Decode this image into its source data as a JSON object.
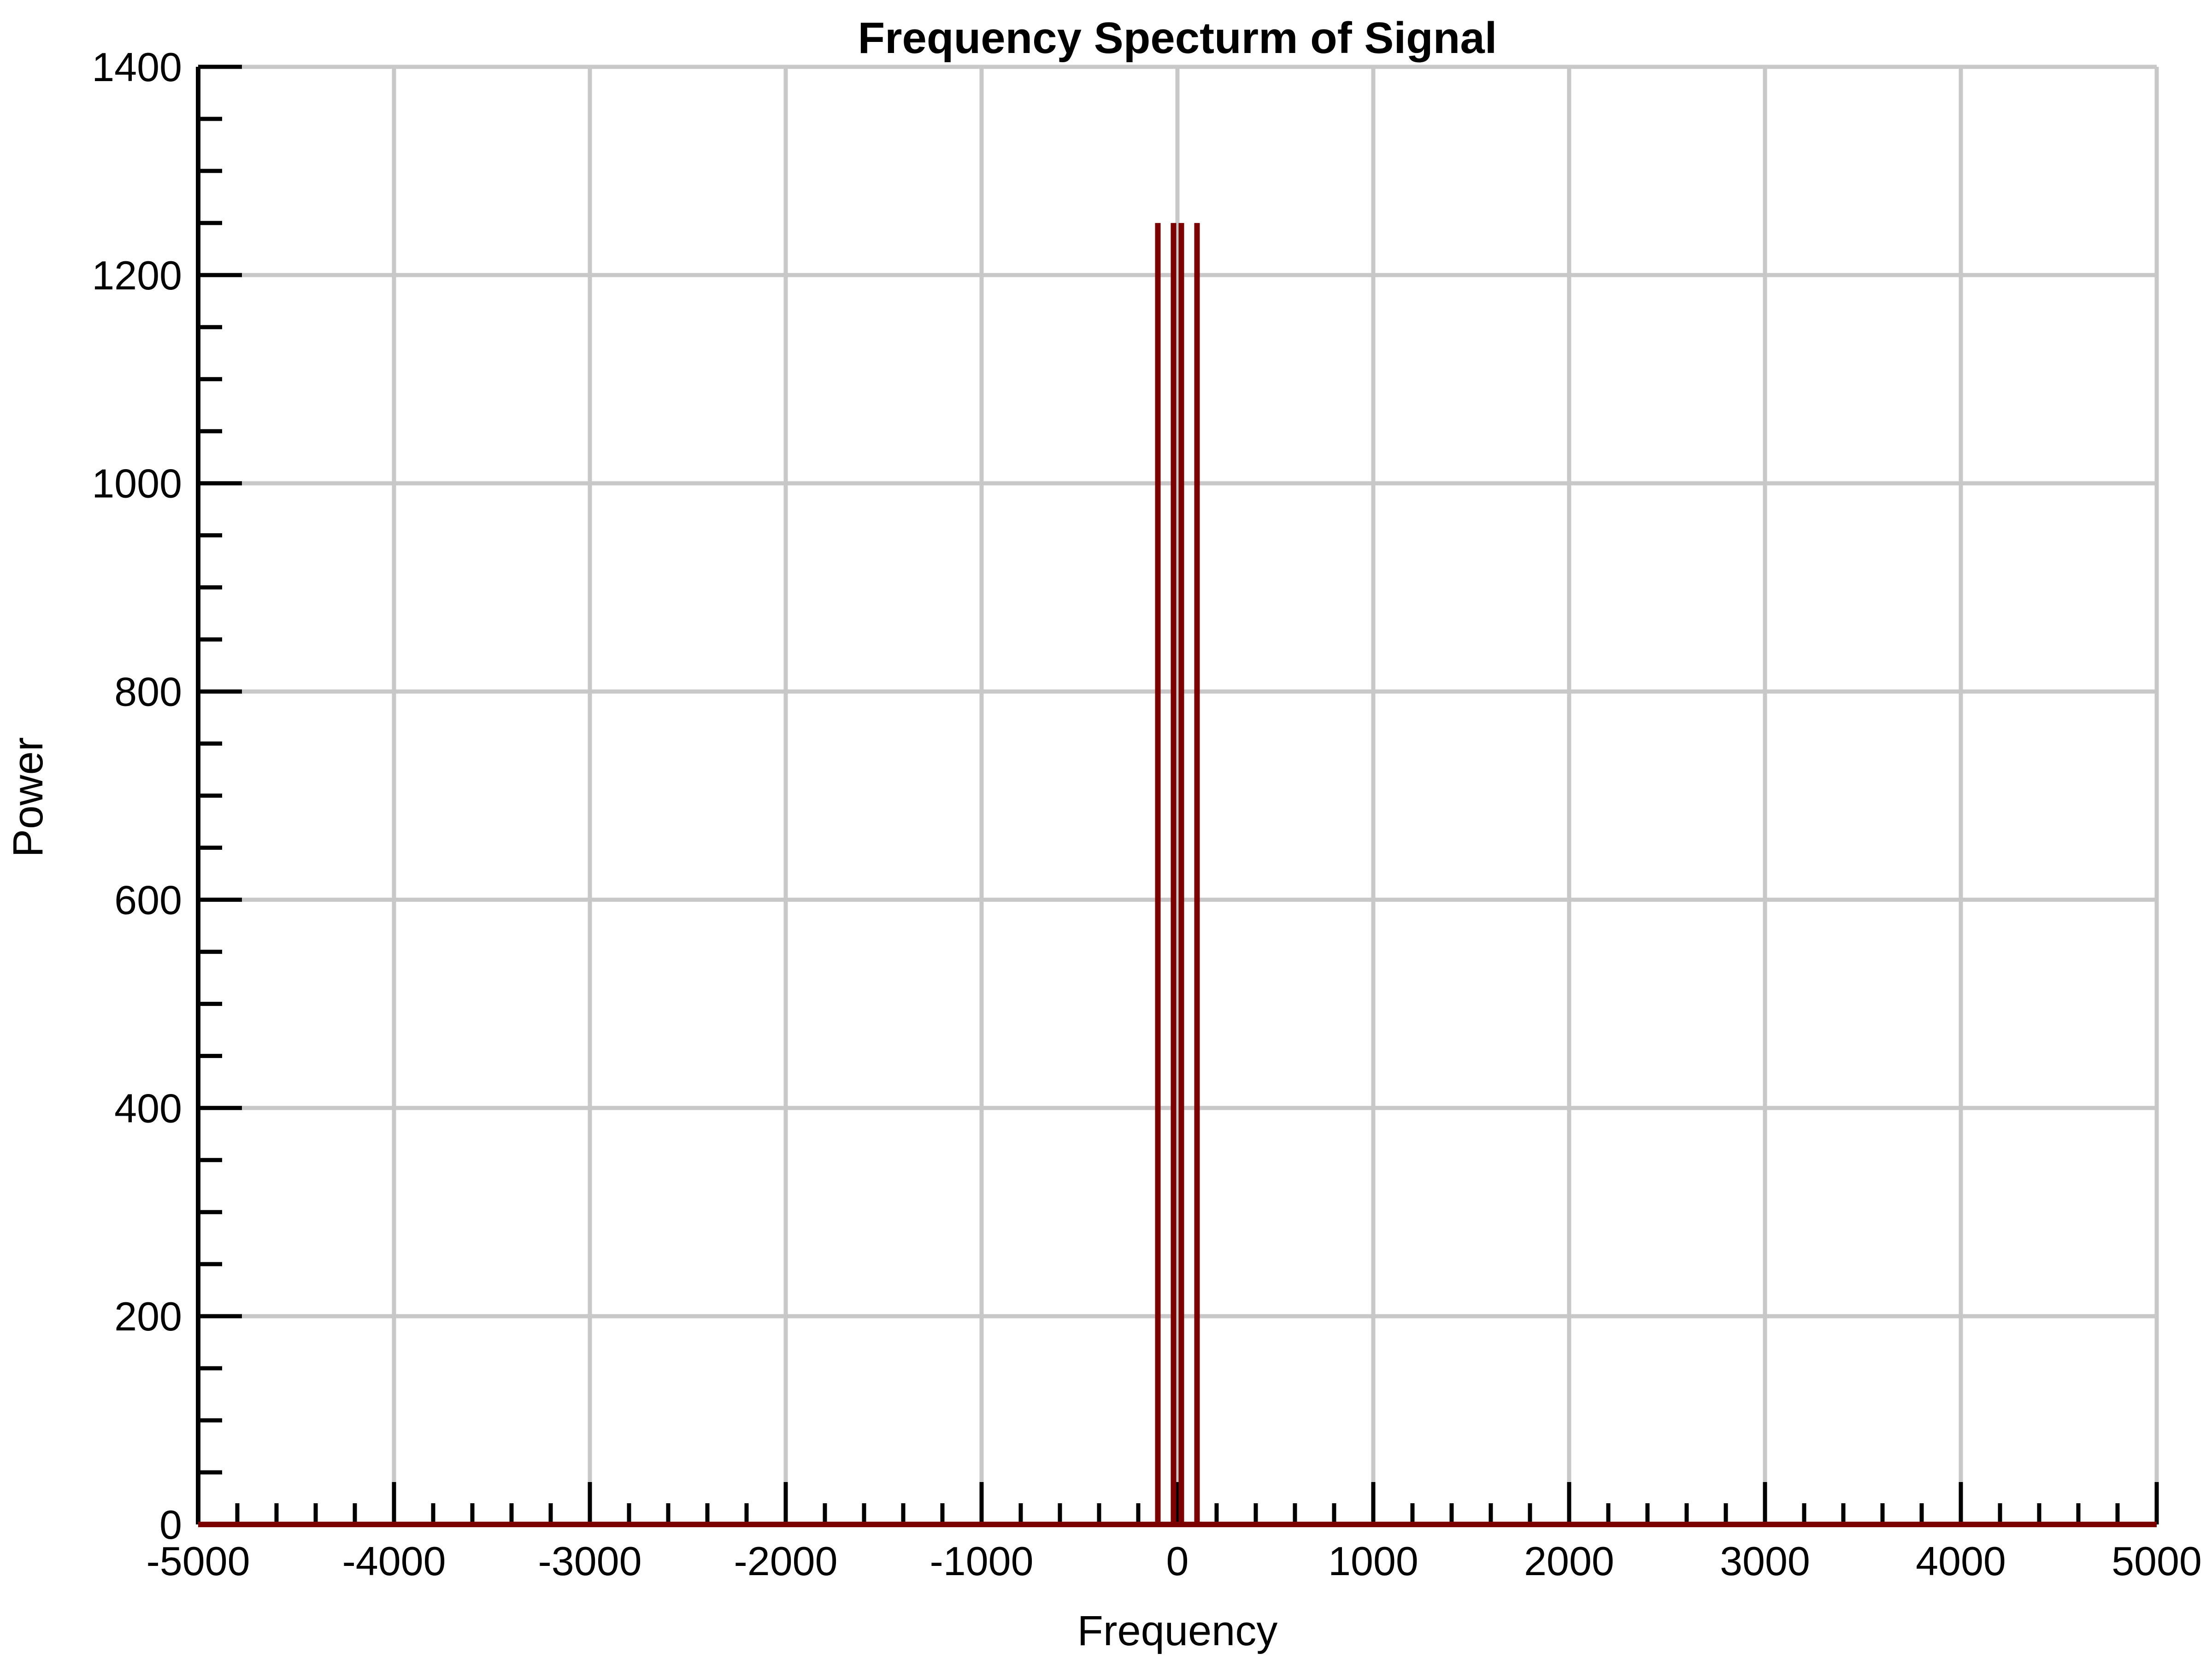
{
  "chart_data": {
    "type": "line",
    "title": "Frequency Specturm of Signal",
    "xlabel": "Frequency",
    "ylabel": "Power",
    "xlim": [
      -5000,
      5000
    ],
    "ylim": [
      0,
      1400
    ],
    "x_major_ticks": [
      -5000,
      -4000,
      -3000,
      -2000,
      -1000,
      0,
      1000,
      2000,
      3000,
      4000,
      5000
    ],
    "x_tick_labels": [
      "-5000",
      "-4000",
      "-3000",
      "-2000",
      "-1000",
      "0",
      "1000",
      "2000",
      "3000",
      "4000",
      "5000"
    ],
    "x_minor_step": 200,
    "y_major_ticks": [
      0,
      200,
      400,
      600,
      800,
      1000,
      1200,
      1400
    ],
    "y_tick_labels": [
      "0",
      "200",
      "400",
      "600",
      "800",
      "1000",
      "1200",
      "1400"
    ],
    "y_minor_step": 50,
    "grid": true,
    "series": [
      {
        "color": "#7b0000",
        "x": [
          -5000,
          -100,
          -100,
          -100,
          -20,
          -20,
          -20,
          20,
          20,
          20,
          100,
          100,
          100,
          5000
        ],
        "y": [
          0,
          0,
          1250,
          0,
          0,
          1250,
          0,
          0,
          1250,
          0,
          0,
          1250,
          0,
          0
        ]
      }
    ]
  }
}
